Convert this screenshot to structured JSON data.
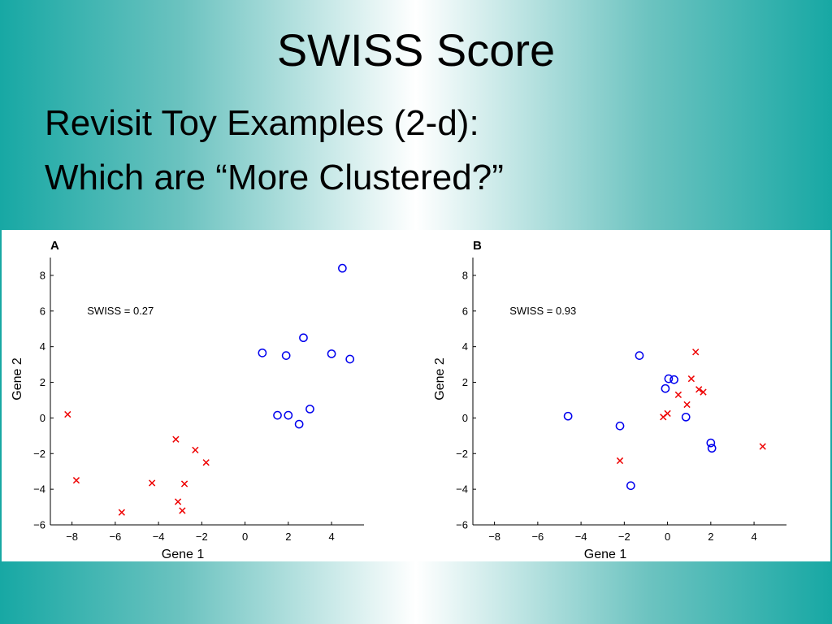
{
  "slide": {
    "title": "SWISS Score",
    "subtitle_line1": "Revisit Toy Examples  (2-d):",
    "subtitle_line2": "Which are “More Clustered?”"
  },
  "colors": {
    "cluster_circles": "#0000ee",
    "cluster_crosses": "#ee0000"
  },
  "chart_data": [
    {
      "panel": "A",
      "type": "scatter",
      "annotation": "SWISS = 0.27",
      "xlabel": "Gene 1",
      "ylabel": "Gene 2",
      "xlim": [
        -9,
        5.5
      ],
      "ylim": [
        -6,
        9
      ],
      "xticks": [
        -8,
        -6,
        -4,
        -2,
        0,
        2,
        4
      ],
      "yticks": [
        -6,
        -4,
        -2,
        0,
        2,
        4,
        6,
        8
      ],
      "series": [
        {
          "marker": "o",
          "color": "#0000ee",
          "points": [
            [
              4.5,
              8.4
            ],
            [
              2.7,
              4.5
            ],
            [
              0.8,
              3.65
            ],
            [
              1.9,
              3.5
            ],
            [
              4.0,
              3.6
            ],
            [
              4.85,
              3.3
            ],
            [
              3.0,
              0.5
            ],
            [
              1.5,
              0.15
            ],
            [
              2.0,
              0.15
            ],
            [
              2.5,
              -0.35
            ]
          ]
        },
        {
          "marker": "x",
          "color": "#ee0000",
          "points": [
            [
              -8.2,
              0.2
            ],
            [
              -7.8,
              -3.5
            ],
            [
              -5.7,
              -5.3
            ],
            [
              -4.3,
              -3.65
            ],
            [
              -3.2,
              -1.2
            ],
            [
              -2.3,
              -1.8
            ],
            [
              -1.8,
              -2.5
            ],
            [
              -2.8,
              -3.7
            ],
            [
              -3.1,
              -4.7
            ],
            [
              -2.9,
              -5.2
            ]
          ]
        }
      ]
    },
    {
      "panel": "B",
      "type": "scatter",
      "annotation": "SWISS = 0.93",
      "xlabel": "Gene 1",
      "ylabel": "Gene 2",
      "xlim": [
        -9,
        5.5
      ],
      "ylim": [
        -6,
        9
      ],
      "xticks": [
        -8,
        -6,
        -4,
        -2,
        0,
        2,
        4
      ],
      "yticks": [
        -6,
        -4,
        -2,
        0,
        2,
        4,
        6,
        8
      ],
      "series": [
        {
          "marker": "o",
          "color": "#0000ee",
          "points": [
            [
              -4.6,
              0.1
            ],
            [
              -1.3,
              3.5
            ],
            [
              0.05,
              2.2
            ],
            [
              0.3,
              2.15
            ],
            [
              -0.1,
              1.65
            ],
            [
              0.85,
              0.05
            ],
            [
              -2.2,
              -0.45
            ],
            [
              2.0,
              -1.4
            ],
            [
              2.05,
              -1.7
            ],
            [
              -1.7,
              -3.8
            ]
          ]
        },
        {
          "marker": "x",
          "color": "#ee0000",
          "points": [
            [
              1.3,
              3.7
            ],
            [
              1.1,
              2.2
            ],
            [
              1.45,
              1.6
            ],
            [
              1.65,
              1.45
            ],
            [
              0.5,
              1.3
            ],
            [
              0.9,
              0.75
            ],
            [
              0.0,
              0.25
            ],
            [
              -0.2,
              0.05
            ],
            [
              -2.2,
              -2.4
            ],
            [
              4.4,
              -1.6
            ]
          ]
        }
      ]
    }
  ]
}
